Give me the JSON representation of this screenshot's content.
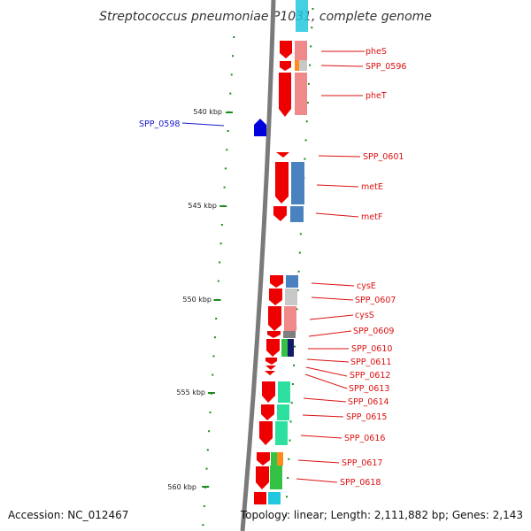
{
  "title": "Streptococcus pneumoniae P1031, complete genome",
  "footer": {
    "accession": "Accession: NC_012467",
    "topology": "Topology: linear; Length: 2,111,882 bp; Genes: 2,143"
  },
  "scale": {
    "start_kbp": 540,
    "end_kbp": 560,
    "labels": [
      "540 kbp",
      "545 kbp",
      "550 kbp",
      "555 kbp",
      "560 kbp"
    ]
  },
  "colors": {
    "gene_red": "#ee0000",
    "gene_blue": "#0000dd",
    "label_red": "#dd1111",
    "label_blue": "#1a1acc",
    "tick_green": "#1a8a1a",
    "backbone": "#7a7a7a",
    "salmon": "#f08a8a",
    "steelblue": "#4a82bf",
    "teal": "#2ee0a0",
    "cyan": "#22c8dd",
    "gray_light": "#c8c8c8",
    "gray_dark": "#7f7f7f",
    "navy": "#141a6a",
    "orange": "#ff8c1a",
    "green": "#34c244"
  },
  "genes": [
    {
      "name": "pheS"
    },
    {
      "name": "SPP_0596"
    },
    {
      "name": "pheT"
    },
    {
      "name": "SPP_0598"
    },
    {
      "name": "SPP_0601"
    },
    {
      "name": "metE"
    },
    {
      "name": "metF"
    },
    {
      "name": "cysE"
    },
    {
      "name": "SPP_0607"
    },
    {
      "name": "cysS"
    },
    {
      "name": "SPP_0609"
    },
    {
      "name": "SPP_0610"
    },
    {
      "name": "SPP_0611"
    },
    {
      "name": "SPP_0612"
    },
    {
      "name": "SPP_0613"
    },
    {
      "name": "SPP_0614"
    },
    {
      "name": "SPP_0615"
    },
    {
      "name": "SPP_0616"
    },
    {
      "name": "SPP_0617"
    },
    {
      "name": "SPP_0618"
    }
  ]
}
